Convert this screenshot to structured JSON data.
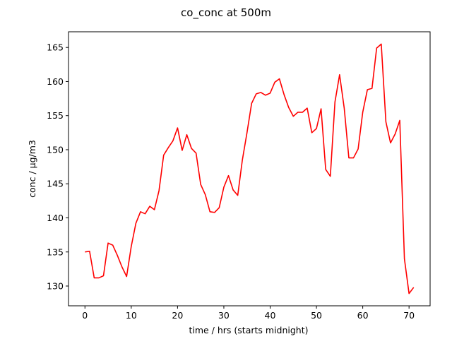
{
  "chart_data": {
    "type": "line",
    "title": "co_conc at 500m",
    "xlabel": "time / hrs (starts midnight)",
    "ylabel": "conc / μg/m3",
    "xlim": [
      -3.55,
      74.55
    ],
    "ylim": [
      127.1,
      167.3
    ],
    "xticks": [
      0,
      10,
      20,
      30,
      40,
      50,
      60,
      70
    ],
    "yticks": [
      130,
      135,
      140,
      145,
      150,
      155,
      160,
      165
    ],
    "grid": false,
    "series": [
      {
        "color": "#ff0000",
        "x": [
          0,
          1,
          2,
          3,
          4,
          5,
          6,
          7,
          8,
          9,
          10,
          11,
          12,
          13,
          14,
          15,
          16,
          17,
          18,
          19,
          20,
          21,
          22,
          23,
          24,
          25,
          26,
          27,
          28,
          29,
          30,
          31,
          32,
          33,
          34,
          35,
          36,
          37,
          38,
          39,
          40,
          41,
          42,
          43,
          44,
          45,
          46,
          47,
          48,
          49,
          50,
          51,
          52,
          53,
          54,
          55,
          56,
          57,
          58,
          59,
          60,
          61,
          62,
          63,
          64,
          65,
          66,
          67,
          68,
          69,
          70,
          71
        ],
        "y": [
          135.0,
          135.1,
          131.2,
          131.2,
          131.5,
          136.3,
          136.0,
          134.5,
          132.8,
          131.4,
          135.8,
          139.2,
          140.9,
          140.6,
          141.7,
          141.2,
          144.0,
          149.2,
          150.3,
          151.3,
          153.2,
          149.9,
          152.2,
          150.2,
          149.5,
          144.9,
          143.4,
          140.9,
          140.8,
          141.5,
          144.5,
          146.2,
          144.1,
          143.3,
          148.5,
          152.5,
          156.8,
          158.2,
          158.4,
          158.0,
          158.3,
          159.9,
          160.4,
          158.1,
          156.2,
          154.9,
          155.5,
          155.5,
          156.1,
          152.5,
          153.1,
          156.0,
          147.1,
          146.1,
          157.0,
          161.0,
          156.1,
          148.8,
          148.8,
          150.1,
          155.5,
          158.8,
          159.0,
          164.9,
          165.5,
          154.1,
          151.0,
          152.3,
          154.3,
          134.0,
          128.9,
          129.8
        ]
      }
    ]
  }
}
